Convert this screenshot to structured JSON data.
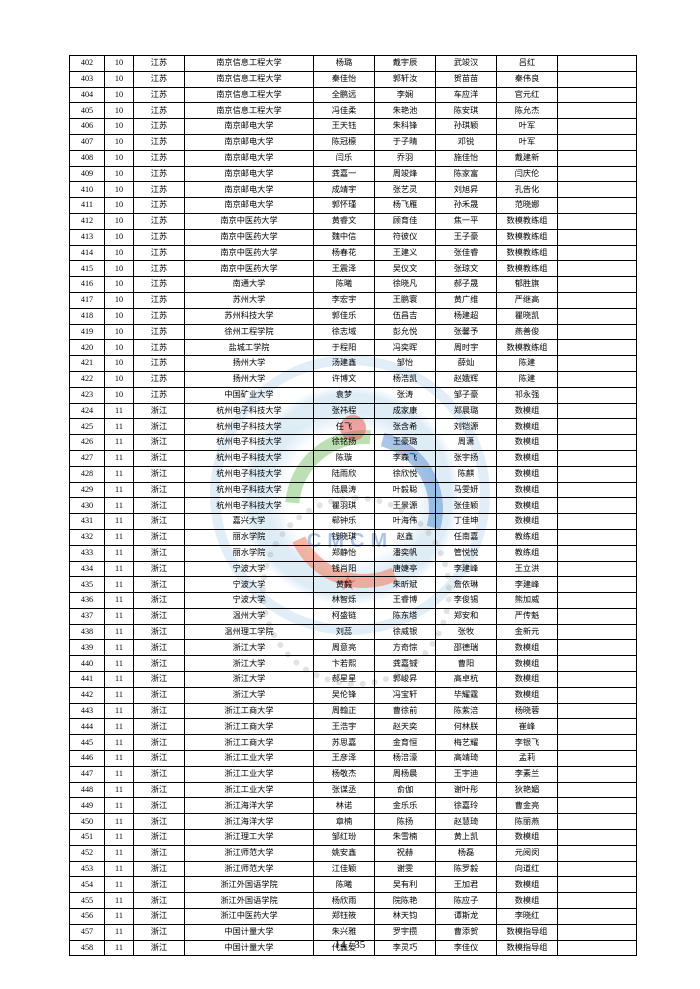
{
  "footer": {
    "text": "14 / 35"
  },
  "watermark": {
    "text": "CMCM"
  },
  "rows": [
    [
      "402",
      "10",
      "江苏",
      "南京信息工程大学",
      "杨璐",
      "戴宇辰",
      "武竣汉",
      "吕红",
      ""
    ],
    [
      "403",
      "10",
      "江苏",
      "南京信息工程大学",
      "秦佳怡",
      "郭轩汝",
      "贺苗苗",
      "秦伟良",
      ""
    ],
    [
      "404",
      "10",
      "江苏",
      "南京信息工程大学",
      "全鹏远",
      "李娴",
      "车应洋",
      "官元红",
      ""
    ],
    [
      "405",
      "10",
      "江苏",
      "南京信息工程大学",
      "冯佳柔",
      "朱艳池",
      "陈安琪",
      "陈允杰",
      ""
    ],
    [
      "406",
      "10",
      "江苏",
      "南京邮电大学",
      "王天钰",
      "朱科锋",
      "孙琪颖",
      "叶军",
      ""
    ],
    [
      "407",
      "10",
      "江苏",
      "南京邮电大学",
      "陈冠檩",
      "于子晴",
      "邓锐",
      "叶军",
      ""
    ],
    [
      "408",
      "10",
      "江苏",
      "南京邮电大学",
      "闫乐",
      "乔羽",
      "施佳怡",
      "戴建新",
      ""
    ],
    [
      "409",
      "10",
      "江苏",
      "南京邮电大学",
      "龚嘉一",
      "周竣烽",
      "陈家富",
      "闫庆伦",
      ""
    ],
    [
      "410",
      "10",
      "江苏",
      "南京邮电大学",
      "成靖宇",
      "张艺灵",
      "刘旭昇",
      "孔告化",
      ""
    ],
    [
      "411",
      "10",
      "江苏",
      "南京邮电大学",
      "郭怀瑾",
      "杨飞雁",
      "孙禾晟",
      "范晓娜",
      ""
    ],
    [
      "412",
      "10",
      "江苏",
      "南京中医药大学",
      "黄睿文",
      "顾育佳",
      "焦一平",
      "数模教练组",
      ""
    ],
    [
      "413",
      "10",
      "江苏",
      "南京中医药大学",
      "魏中信",
      "符彼仪",
      "王子豪",
      "数模教练组",
      ""
    ],
    [
      "414",
      "10",
      "江苏",
      "南京中医药大学",
      "杨春花",
      "王建义",
      "张佳睿",
      "数模教练组",
      ""
    ],
    [
      "415",
      "10",
      "江苏",
      "南京中医药大学",
      "王震泽",
      "吴仪文",
      "张琼文",
      "数模教练组",
      ""
    ],
    [
      "416",
      "10",
      "江苏",
      "南通大学",
      "陈曦",
      "徐晓凡",
      "郝子晟",
      "郁胜旗",
      ""
    ],
    [
      "417",
      "10",
      "江苏",
      "苏州大学",
      "李宏宇",
      "王鹏寰",
      "黄广维",
      "严继高",
      ""
    ],
    [
      "418",
      "10",
      "江苏",
      "苏州科技大学",
      "郭佳乐",
      "伍昌吉",
      "杨建超",
      "瞿晓凯",
      ""
    ],
    [
      "419",
      "10",
      "江苏",
      "徐州工程学院",
      "徐志域",
      "彭允悦",
      "张馨予",
      "燕善俊",
      ""
    ],
    [
      "420",
      "10",
      "江苏",
      "盐城工学院",
      "于程阳",
      "冯奕晖",
      "周时宇",
      "数模教练组",
      ""
    ],
    [
      "421",
      "10",
      "江苏",
      "扬州大学",
      "汤建鑫",
      "邹怡",
      "薛灿",
      "陈建",
      ""
    ],
    [
      "422",
      "10",
      "江苏",
      "扬州大学",
      "许博文",
      "杨浩凯",
      "赵娥辉",
      "陈建",
      ""
    ],
    [
      "423",
      "10",
      "江苏",
      "中国矿业大学",
      "袁梦",
      "张涛",
      "邹子豪",
      "祁永强",
      ""
    ],
    [
      "424",
      "11",
      "浙江",
      "杭州电子科技大学",
      "张祎程",
      "成家康",
      "郑晨璐",
      "数模组",
      ""
    ],
    [
      "425",
      "11",
      "浙江",
      "杭州电子科技大学",
      "任飞",
      "张含希",
      "刘铠源",
      "数模组",
      ""
    ],
    [
      "426",
      "11",
      "浙江",
      "杭州电子科技大学",
      "徐铭扬",
      "王豪璐",
      "周潇",
      "数模组",
      ""
    ],
    [
      "427",
      "11",
      "浙江",
      "杭州电子科技大学",
      "陈璇",
      "李森飞",
      "张宇扬",
      "数模组",
      ""
    ],
    [
      "428",
      "11",
      "浙江",
      "杭州电子科技大学",
      "陆雨欣",
      "徐欣悦",
      "陈麒",
      "数模组",
      ""
    ],
    [
      "429",
      "11",
      "浙江",
      "杭州电子科技大学",
      "陆晨涛",
      "叶毅聪",
      "马雯妍",
      "数模组",
      ""
    ],
    [
      "430",
      "11",
      "浙江",
      "杭州电子科技大学",
      "瞿羽琪",
      "王景源",
      "张佳颖",
      "数模组",
      ""
    ],
    [
      "431",
      "11",
      "浙江",
      "嘉兴大学",
      "郗钟乐",
      "叶海伟",
      "丁佳坤",
      "数模组",
      ""
    ],
    [
      "432",
      "11",
      "浙江",
      "丽水学院",
      "钱晓琪",
      "赵鑫",
      "任南嘉",
      "教练组",
      ""
    ],
    [
      "433",
      "11",
      "浙江",
      "丽水学院",
      "郑静怡",
      "潘奕帆",
      "管悦悦",
      "教练组",
      ""
    ],
    [
      "434",
      "11",
      "浙江",
      "宁波大学",
      "钱肖阳",
      "唐婕亭",
      "李建峰",
      "王立洪",
      ""
    ],
    [
      "435",
      "11",
      "浙江",
      "宁波大学",
      "黄毅",
      "朱昕斌",
      "詹依琳",
      "李建峰",
      ""
    ],
    [
      "436",
      "11",
      "浙江",
      "宁波大学",
      "林智烁",
      "王睿博",
      "李俊锡",
      "熊加威",
      ""
    ],
    [
      "437",
      "11",
      "浙江",
      "温州大学",
      "柯盛链",
      "陈东塔",
      "郑安和",
      "严传魁",
      ""
    ],
    [
      "438",
      "11",
      "浙江",
      "温州理工学院",
      "刘蕊",
      "徐威银",
      "张牧",
      "金新元",
      ""
    ],
    [
      "439",
      "11",
      "浙江",
      "浙江大学",
      "周意亮",
      "方奇悰",
      "邵德瑞",
      "数模组",
      ""
    ],
    [
      "440",
      "11",
      "浙江",
      "浙江大学",
      "卞若熙",
      "龚嘉铖",
      "曹阳",
      "数模组",
      ""
    ],
    [
      "441",
      "11",
      "浙江",
      "浙江大学",
      "郝星星",
      "郭峻昇",
      "高卓杭",
      "数模组",
      ""
    ],
    [
      "442",
      "11",
      "浙江",
      "浙江大学",
      "吴伦锋",
      "冯宝轩",
      "毕耀霆",
      "数模组",
      ""
    ],
    [
      "443",
      "11",
      "浙江",
      "浙江工商大学",
      "周翰正",
      "曹徐前",
      "陈紫涪",
      "杨晓蓉",
      ""
    ],
    [
      "444",
      "11",
      "浙江",
      "浙江工商大学",
      "王浩宇",
      "赵天奕",
      "何林朕",
      "崔峰",
      ""
    ],
    [
      "445",
      "11",
      "浙江",
      "浙江工商大学",
      "苏思嘉",
      "金育恒",
      "梅艺耀",
      "李银飞",
      ""
    ],
    [
      "446",
      "11",
      "浙江",
      "浙江工业大学",
      "王彦泽",
      "杨涪濠",
      "高靖琦",
      "孟莉",
      ""
    ],
    [
      "447",
      "11",
      "浙江",
      "浙江工业大学",
      "杨敬杰",
      "周杨晨",
      "王宇迪",
      "李素兰",
      ""
    ],
    [
      "448",
      "11",
      "浙江",
      "浙江工业大学",
      "张谋丞",
      "俞伽",
      "谢叶彤",
      "狄艳媚",
      ""
    ],
    [
      "449",
      "11",
      "浙江",
      "浙江海洋大学",
      "林诺",
      "金乐乐",
      "徐嘉玲",
      "曹金亮",
      ""
    ],
    [
      "450",
      "11",
      "浙江",
      "浙江海洋大学",
      "章楠",
      "陈扬",
      "赵慧琦",
      "陈丽燕",
      ""
    ],
    [
      "451",
      "11",
      "浙江",
      "浙江理工大学",
      "邹红玢",
      "朱雪楠",
      "黄上凯",
      "数模组",
      ""
    ],
    [
      "452",
      "11",
      "浙江",
      "浙江师范大学",
      "姚安鑫",
      "祝赫",
      "杨磊",
      "元阅闵",
      ""
    ],
    [
      "453",
      "11",
      "浙江",
      "浙江师范大学",
      "江佳颖",
      "谢雯",
      "陈罗毅",
      "向道红",
      ""
    ],
    [
      "454",
      "11",
      "浙江",
      "浙江外国语学院",
      "陈曦",
      "吴有利",
      "王加君",
      "数模组",
      ""
    ],
    [
      "455",
      "11",
      "浙江",
      "浙江外国语学院",
      "杨欣雨",
      "院陈艳",
      "陈应子",
      "数模组",
      ""
    ],
    [
      "456",
      "11",
      "浙江",
      "浙江中医药大学",
      "郑钰筱",
      "林天钧",
      "谭斯龙",
      "李晓红",
      ""
    ],
    [
      "457",
      "11",
      "浙江",
      "中国计量大学",
      "朱兴雅",
      "罗宇攒",
      "曹添贺",
      "数模指导组",
      ""
    ],
    [
      "458",
      "11",
      "浙江",
      "中国计量大学",
      "代鑫爱",
      "李灵巧",
      "李佳仪",
      "数模指导组",
      ""
    ]
  ]
}
